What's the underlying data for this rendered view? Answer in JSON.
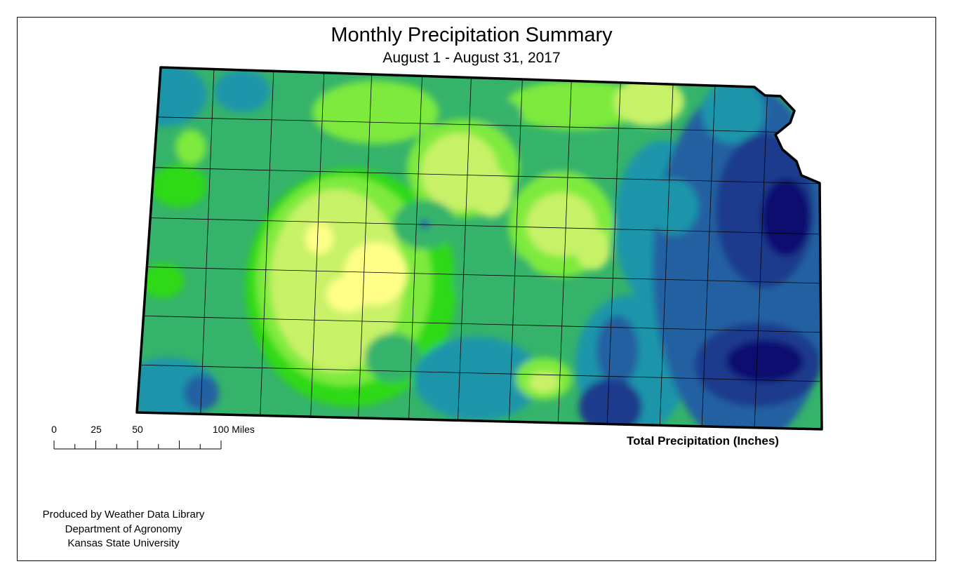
{
  "header": {
    "title": "Monthly Precipitation Summary",
    "subtitle": "August 1 - August 31, 2017"
  },
  "legend": {
    "title": "Total Precipitation (Inches)"
  },
  "scale_bar": {
    "labels": [
      "0",
      "25",
      "50",
      "100 Miles"
    ],
    "ticks_miles": [
      0,
      12.5,
      25,
      37.5,
      50,
      62.5,
      75,
      87.5,
      100
    ]
  },
  "credits": {
    "line1": "Produced by Weather Data Library",
    "line2": "Department of Agronomy",
    "line3": "Kansas State University"
  },
  "colors": {
    "very_low": "#ffff88",
    "low": "#c8f268",
    "light_green": "#7eea3c",
    "green": "#2ed918",
    "teal_green": "#35b36a",
    "teal": "#1b95aa",
    "blue": "#2160a2",
    "dark_blue": "#1d3a8c",
    "navy": "#0c1170"
  }
}
